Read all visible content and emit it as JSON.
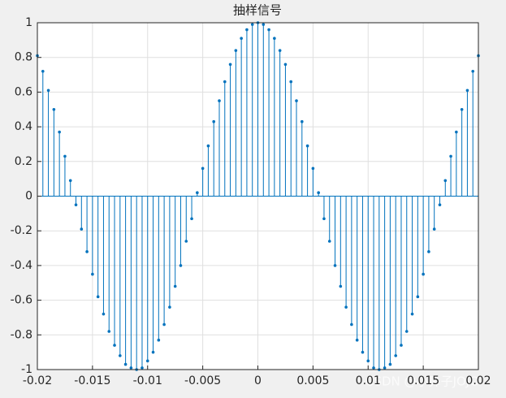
{
  "chart_data": {
    "type": "stem",
    "title": "抽样信号",
    "x": [
      -0.02,
      -0.0195,
      -0.019,
      -0.0185,
      -0.018,
      -0.0175,
      -0.017,
      -0.0165,
      -0.016,
      -0.0155,
      -0.015,
      -0.0145,
      -0.014,
      -0.0135,
      -0.013,
      -0.0125,
      -0.012,
      -0.0115,
      -0.011,
      -0.0105,
      -0.01,
      -0.0095,
      -0.009,
      -0.0085,
      -0.008,
      -0.0075,
      -0.007,
      -0.0065,
      -0.006,
      -0.0055,
      -0.005,
      -0.0045,
      -0.004,
      -0.0035,
      -0.003,
      -0.0025,
      -0.002,
      -0.0015,
      -0.001,
      -0.0005,
      0,
      0.0005,
      0.001,
      0.0015,
      0.002,
      0.0025,
      0.003,
      0.0035,
      0.004,
      0.0045,
      0.005,
      0.0055,
      0.006,
      0.0065,
      0.007,
      0.0075,
      0.008,
      0.0085,
      0.009,
      0.0095,
      0.01,
      0.0105,
      0.011,
      0.0115,
      0.012,
      0.0125,
      0.013,
      0.0135,
      0.014,
      0.0145,
      0.015,
      0.0155,
      0.016,
      0.0165,
      0.017,
      0.0175,
      0.018,
      0.0185,
      0.019,
      0.0195,
      0.02
    ],
    "values": [
      0.81,
      0.72,
      0.61,
      0.5,
      0.37,
      0.23,
      0.09,
      -0.05,
      -0.19,
      -0.32,
      -0.45,
      -0.58,
      -0.68,
      -0.78,
      -0.86,
      -0.92,
      -0.97,
      -0.99,
      -1,
      -0.99,
      -0.95,
      -0.9,
      -0.83,
      -0.74,
      -0.64,
      -0.52,
      -0.4,
      -0.26,
      -0.13,
      0.02,
      0.16,
      0.29,
      0.43,
      0.55,
      0.66,
      0.76,
      0.84,
      0.91,
      0.96,
      0.99,
      1,
      0.99,
      0.96,
      0.91,
      0.84,
      0.76,
      0.66,
      0.55,
      0.43,
      0.29,
      0.16,
      0.02,
      -0.13,
      -0.26,
      -0.4,
      -0.52,
      -0.64,
      -0.74,
      -0.83,
      -0.9,
      -0.95,
      -0.99,
      -1,
      -0.99,
      -0.97,
      -0.92,
      -0.86,
      -0.78,
      -0.68,
      -0.58,
      -0.45,
      -0.32,
      -0.19,
      -0.05,
      0.09,
      0.23,
      0.37,
      0.5,
      0.61,
      0.72,
      0.81
    ],
    "color": "#0072bd",
    "xlim": [
      -0.02,
      0.02
    ],
    "xticks": [
      -0.02,
      -0.015,
      -0.01,
      -0.005,
      0,
      0.005,
      0.01,
      0.015,
      0.02
    ],
    "ylim": [
      -1,
      1
    ],
    "yticks": [
      -1,
      -0.8,
      -0.6,
      -0.4,
      -0.2,
      0,
      0.2,
      0.4,
      0.6,
      0.8,
      1
    ],
    "grid": true,
    "watermark": "CSDN @小鼻子JOJO"
  }
}
